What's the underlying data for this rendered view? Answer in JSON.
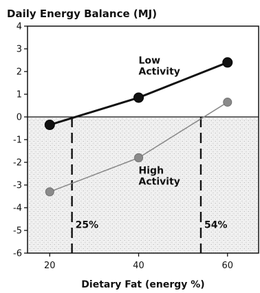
{
  "chart_data": {
    "type": "line",
    "title": "Daily Energy Balance (MJ)",
    "xlabel": "Dietary Fat (energy %)",
    "ylabel": "",
    "xlim": [
      15,
      67
    ],
    "ylim": [
      -6,
      4
    ],
    "x_ticks": [
      20,
      40,
      60
    ],
    "y_ticks": [
      4,
      3,
      2,
      1,
      0,
      -1,
      -2,
      -3,
      -4,
      -5,
      -6
    ],
    "grid": false,
    "series": [
      {
        "name": "Low Activity",
        "label_lines": [
          "Low",
          "Activity"
        ],
        "x": [
          20,
          40,
          60
        ],
        "y": [
          -0.35,
          0.85,
          2.4
        ],
        "color": "#111111",
        "label_pos": {
          "x": 40,
          "y": 2.35
        }
      },
      {
        "name": "High Activity",
        "label_lines": [
          "High",
          "Activity"
        ],
        "x": [
          20,
          40,
          60
        ],
        "y": [
          -3.3,
          -1.8,
          0.65
        ],
        "color": "#8a8a8a",
        "label_pos": {
          "x": 40,
          "y": -2.5
        }
      }
    ],
    "annotations": [
      {
        "x": 25,
        "label": "25%"
      },
      {
        "x": 54,
        "label": "54%"
      }
    ],
    "shaded_region": {
      "from_y": 0,
      "to_y": -6
    }
  }
}
